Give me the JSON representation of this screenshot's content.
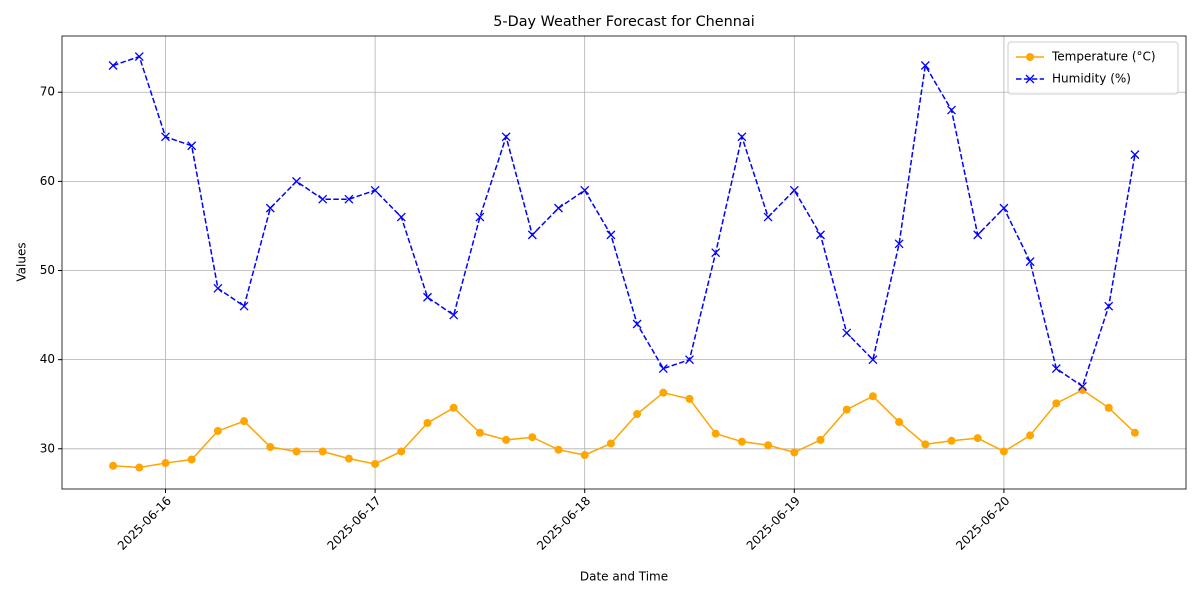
{
  "chart_data": {
    "type": "line",
    "title": "5-Day Weather Forecast for Chennai",
    "xlabel": "Date and Time",
    "ylabel": "Values",
    "x": [
      "2025-06-15T18:00",
      "2025-06-15T21:00",
      "2025-06-16T00:00",
      "2025-06-16T03:00",
      "2025-06-16T06:00",
      "2025-06-16T09:00",
      "2025-06-16T12:00",
      "2025-06-16T15:00",
      "2025-06-16T18:00",
      "2025-06-16T21:00",
      "2025-06-17T00:00",
      "2025-06-17T03:00",
      "2025-06-17T06:00",
      "2025-06-17T09:00",
      "2025-06-17T12:00",
      "2025-06-17T15:00",
      "2025-06-17T18:00",
      "2025-06-17T21:00",
      "2025-06-18T00:00",
      "2025-06-18T03:00",
      "2025-06-18T06:00",
      "2025-06-18T09:00",
      "2025-06-18T12:00",
      "2025-06-18T15:00",
      "2025-06-18T18:00",
      "2025-06-18T21:00",
      "2025-06-19T00:00",
      "2025-06-19T03:00",
      "2025-06-19T06:00",
      "2025-06-19T09:00",
      "2025-06-19T12:00",
      "2025-06-19T15:00",
      "2025-06-19T18:00",
      "2025-06-19T21:00",
      "2025-06-20T00:00",
      "2025-06-20T03:00",
      "2025-06-20T06:00",
      "2025-06-20T09:00",
      "2025-06-20T12:00",
      "2025-06-20T15:00"
    ],
    "series": [
      {
        "name": "Temperature (°C)",
        "color": "orange",
        "linestyle": "solid",
        "marker": "circle",
        "values": [
          28.1,
          27.9,
          28.4,
          28.8,
          32.0,
          33.1,
          30.2,
          29.7,
          29.7,
          28.9,
          28.3,
          29.7,
          32.9,
          34.6,
          31.8,
          31.0,
          31.3,
          29.9,
          29.3,
          30.6,
          33.9,
          36.3,
          35.6,
          31.7,
          30.8,
          30.4,
          29.6,
          31.0,
          34.4,
          35.9,
          33.0,
          30.5,
          30.9,
          31.2,
          29.7,
          31.5,
          35.1,
          36.6,
          34.6,
          31.8
        ]
      },
      {
        "name": "Humidity (%)",
        "color": "blue",
        "linestyle": "dashed",
        "marker": "x",
        "values": [
          73,
          74,
          65,
          64,
          48,
          46,
          57,
          60,
          58,
          58,
          59,
          56,
          47,
          45,
          56,
          65,
          54,
          57,
          59,
          54,
          44,
          39,
          40,
          52,
          65,
          56,
          59,
          54,
          43,
          40,
          53,
          73,
          68,
          54,
          57,
          51,
          39,
          37,
          46,
          63
        ]
      }
    ],
    "xlim": [
      "2025-06-15T12:09",
      "2025-06-20T20:51"
    ],
    "xticks": [
      "2025-06-16",
      "2025-06-17",
      "2025-06-18",
      "2025-06-19",
      "2025-06-20"
    ],
    "ylim": [
      25.49,
      76.31
    ],
    "yticks": [
      30,
      40,
      50,
      60,
      70
    ],
    "grid": true,
    "legend": "upper right"
  }
}
